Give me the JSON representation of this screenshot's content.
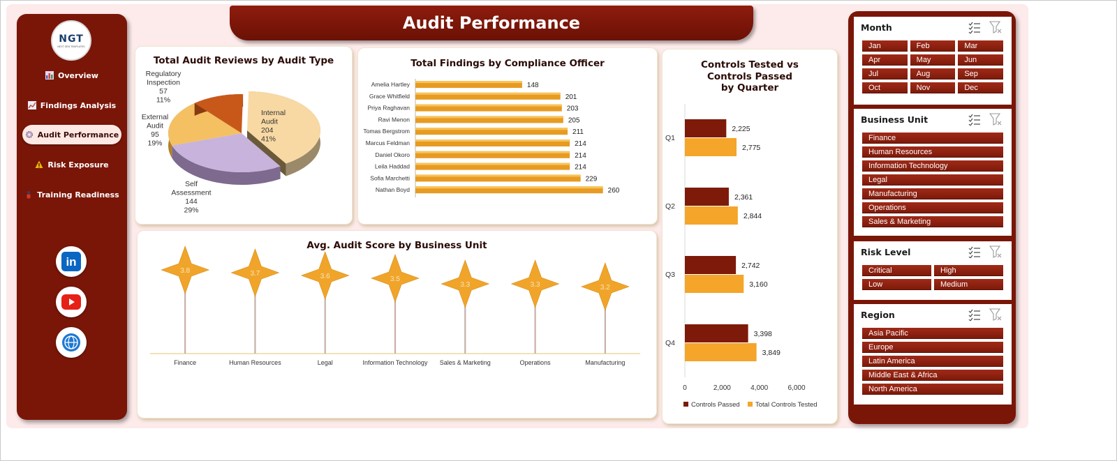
{
  "title": "Audit Performance",
  "logo": {
    "mark": "NGT",
    "sub": "NEXT GEN TEMPLATES"
  },
  "nav": [
    {
      "label": "Overview",
      "icon": "bar-chart-icon",
      "active": false
    },
    {
      "label": "Findings Analysis",
      "icon": "line-chart-icon",
      "active": false
    },
    {
      "label": "Audit Performance",
      "icon": "gear-icon",
      "active": true
    },
    {
      "label": "Risk Exposure",
      "icon": "warning-icon",
      "active": false
    },
    {
      "label": "Training Readiness",
      "icon": "person-icon",
      "active": false
    }
  ],
  "social": [
    {
      "icon": "linkedin-icon",
      "text": "in",
      "color": "#0a66c2"
    },
    {
      "icon": "youtube-icon",
      "color": "#e62117"
    },
    {
      "icon": "globe-icon",
      "color": "#1e78d2"
    }
  ],
  "colors": {
    "brand": "#7a1608",
    "dark_red": "#7e1a0a",
    "orange": "#f4a52a",
    "gold": "#e79b22",
    "lavender": "#c8b3dc",
    "cream": "#f8d9a3",
    "rust": "#c8581a"
  },
  "chart_data": [
    {
      "type": "pie",
      "title": "Total Audit Reviews by Audit Type",
      "slices": [
        {
          "name": "Internal Audit",
          "value": 204,
          "percent": "41%"
        },
        {
          "name": "Self Assessment",
          "value": 144,
          "percent": "29%"
        },
        {
          "name": "External Audit",
          "value": 95,
          "percent": "19%"
        },
        {
          "name": "Regulatory Inspection",
          "value": 57,
          "percent": "11%"
        }
      ]
    },
    {
      "type": "bar",
      "title": "Total Findings by Compliance Officer",
      "categories": [
        "Amelia Hartley",
        "Grace Whitfield",
        "Priya Raghavan",
        "Ravi Menon",
        "Tomas Bergstrom",
        "Marcus Feldman",
        "Daniel Okoro",
        "Leila Haddad",
        "Sofia Marchetti",
        "Nathan Boyd"
      ],
      "values": [
        148,
        201,
        203,
        205,
        211,
        214,
        214,
        214,
        229,
        260
      ],
      "xlim": [
        0,
        300
      ]
    },
    {
      "type": "bar",
      "title": "Avg. Audit Score by Business Unit",
      "categories": [
        "Finance",
        "Human Resources",
        "Legal",
        "Information Technology",
        "Sales & Marketing",
        "Operations",
        "Manufacturing"
      ],
      "values": [
        3.8,
        3.7,
        3.6,
        3.5,
        3.3,
        3.3,
        3.2
      ]
    },
    {
      "type": "bar",
      "title": "Controls Tested vs Controls Passed by Quarter",
      "categories": [
        "Q1",
        "Q2",
        "Q3",
        "Q4"
      ],
      "series": [
        {
          "name": "Controls Passed",
          "values": [
            2225,
            2361,
            2742,
            3398
          ],
          "labels": [
            "2,225",
            "2,361",
            "2,742",
            "3,398"
          ]
        },
        {
          "name": "Total Controls Tested",
          "values": [
            2775,
            2844,
            3160,
            3849
          ],
          "labels": [
            "2,775",
            "2,844",
            "3,160",
            "3,849"
          ]
        }
      ],
      "xticks": [
        "0",
        "2,000",
        "4,000",
        "6,000"
      ],
      "xlim": [
        0,
        6000
      ],
      "legend": "bottom"
    }
  ],
  "slicers": [
    {
      "title": "Month",
      "items": [
        "Jan",
        "Feb",
        "Mar",
        "Apr",
        "May",
        "Jun",
        "Jul",
        "Aug",
        "Sep",
        "Oct",
        "Nov",
        "Dec"
      ],
      "columns": 3
    },
    {
      "title": "Business Unit",
      "items": [
        "Finance",
        "Human Resources",
        "Information Technology",
        "Legal",
        "Manufacturing",
        "Operations",
        "Sales & Marketing"
      ],
      "columns": 1
    },
    {
      "title": "Risk Level",
      "items": [
        "Critical",
        "High",
        "Low",
        "Medium"
      ],
      "columns": 2
    },
    {
      "title": "Region",
      "items": [
        "Asia Pacific",
        "Europe",
        "Latin America",
        "Middle East & Africa",
        "North America"
      ],
      "columns": 1
    }
  ]
}
